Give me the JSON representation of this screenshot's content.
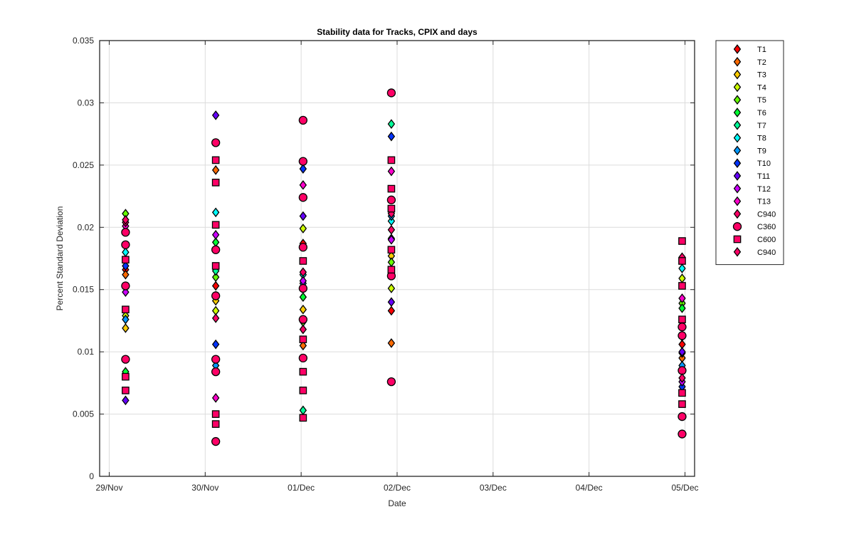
{
  "chart_data": {
    "type": "scatter",
    "title": "Stability data for Tracks, CPIX and days",
    "xlabel": "Date",
    "ylabel": "Percent Standard Deviation",
    "x_ticks": [
      "29/Nov",
      "30/Nov",
      "01/Dec",
      "02/Dec",
      "03/Dec",
      "04/Dec",
      "05/Dec"
    ],
    "y_ticks": [
      "0",
      "0.005",
      "0.01",
      "0.015",
      "0.02",
      "0.025",
      "0.03",
      "0.035"
    ],
    "xlim_days": [
      -0.1,
      6.1
    ],
    "ylim": [
      0,
      0.035
    ],
    "grid": true,
    "legend_position": "outside-right",
    "series": [
      {
        "name": "T1",
        "marker": "diamond",
        "color": "#ff0000",
        "values": [
          {
            "x": "29/Nov",
            "y": 0.0166
          },
          {
            "x": "30/Nov",
            "y": 0.0153
          },
          {
            "x": "01/Dec",
            "y": 0.0187
          },
          {
            "x": "02/Dec",
            "y": 0.0133
          },
          {
            "x": "05/Dec",
            "y": 0.0106
          }
        ]
      },
      {
        "name": "T2",
        "marker": "diamond",
        "color": "#ff6a00",
        "values": [
          {
            "x": "29/Nov",
            "y": 0.0162
          },
          {
            "x": "30/Nov",
            "y": 0.0246
          },
          {
            "x": "01/Dec",
            "y": 0.0105
          },
          {
            "x": "02/Dec",
            "y": 0.0107
          },
          {
            "x": "05/Dec",
            "y": 0.0095
          }
        ]
      },
      {
        "name": "T3",
        "marker": "diamond",
        "color": "#ffcc00",
        "values": [
          {
            "x": "29/Nov",
            "y": 0.0119
          },
          {
            "x": "30/Nov",
            "y": 0.0141
          },
          {
            "x": "01/Dec",
            "y": 0.0134
          },
          {
            "x": "02/Dec",
            "y": 0.0177
          },
          {
            "x": "05/Dec",
            "y": 0.0099
          }
        ]
      },
      {
        "name": "T4",
        "marker": "diamond",
        "color": "#ccff00",
        "values": [
          {
            "x": "29/Nov",
            "y": 0.0129
          },
          {
            "x": "30/Nov",
            "y": 0.0133
          },
          {
            "x": "01/Dec",
            "y": 0.0199
          },
          {
            "x": "02/Dec",
            "y": 0.0151
          },
          {
            "x": "05/Dec",
            "y": 0.0159
          }
        ]
      },
      {
        "name": "T5",
        "marker": "diamond",
        "color": "#66ff00",
        "values": [
          {
            "x": "29/Nov",
            "y": 0.0211
          },
          {
            "x": "30/Nov",
            "y": 0.016
          },
          {
            "x": "01/Dec",
            "y": 0.0124
          },
          {
            "x": "02/Dec",
            "y": 0.0172
          },
          {
            "x": "05/Dec",
            "y": 0.0139
          }
        ]
      },
      {
        "name": "T6",
        "marker": "diamond",
        "color": "#00ff33",
        "values": [
          {
            "x": "29/Nov",
            "y": 0.0084
          },
          {
            "x": "30/Nov",
            "y": 0.0188
          },
          {
            "x": "01/Dec",
            "y": 0.0144
          },
          {
            "x": "02/Dec",
            "y": 0.0191
          },
          {
            "x": "05/Dec",
            "y": 0.0135
          }
        ]
      },
      {
        "name": "T7",
        "marker": "diamond",
        "color": "#00ff99",
        "values": [
          {
            "x": "29/Nov",
            "y": 0.0152
          },
          {
            "x": "30/Nov",
            "y": 0.0165
          },
          {
            "x": "01/Dec",
            "y": 0.0053
          },
          {
            "x": "02/Dec",
            "y": 0.0283
          },
          {
            "x": "05/Dec",
            "y": 0.0112
          }
        ]
      },
      {
        "name": "T8",
        "marker": "diamond",
        "color": "#00ffff",
        "values": [
          {
            "x": "29/Nov",
            "y": 0.018
          },
          {
            "x": "30/Nov",
            "y": 0.0212
          },
          {
            "x": "01/Dec",
            "y": 0.0162
          },
          {
            "x": "02/Dec",
            "y": 0.0205
          },
          {
            "x": "05/Dec",
            "y": 0.0167
          }
        ]
      },
      {
        "name": "T9",
        "marker": "diamond",
        "color": "#0099ff",
        "values": [
          {
            "x": "29/Nov",
            "y": 0.0126
          },
          {
            "x": "30/Nov",
            "y": 0.0089
          },
          {
            "x": "01/Dec",
            "y": 0.0155
          },
          {
            "x": "02/Dec",
            "y": 0.0209
          },
          {
            "x": "05/Dec",
            "y": 0.0089
          }
        ]
      },
      {
        "name": "T10",
        "marker": "diamond",
        "color": "#0033ff",
        "values": [
          {
            "x": "29/Nov",
            "y": 0.0169
          },
          {
            "x": "30/Nov",
            "y": 0.0106
          },
          {
            "x": "01/Dec",
            "y": 0.0247
          },
          {
            "x": "02/Dec",
            "y": 0.0273
          },
          {
            "x": "05/Dec",
            "y": 0.0072
          }
        ]
      },
      {
        "name": "T11",
        "marker": "diamond",
        "color": "#6600ff",
        "values": [
          {
            "x": "29/Nov",
            "y": 0.0061
          },
          {
            "x": "30/Nov",
            "y": 0.029
          },
          {
            "x": "01/Dec",
            "y": 0.0209
          },
          {
            "x": "02/Dec",
            "y": 0.014
          },
          {
            "x": "05/Dec",
            "y": 0.01
          }
        ]
      },
      {
        "name": "T12",
        "marker": "diamond",
        "color": "#cc00ff",
        "values": [
          {
            "x": "29/Nov",
            "y": 0.0148
          },
          {
            "x": "30/Nov",
            "y": 0.0194
          },
          {
            "x": "01/Dec",
            "y": 0.0157
          },
          {
            "x": "02/Dec",
            "y": 0.019
          },
          {
            "x": "05/Dec",
            "y": 0.0076
          }
        ]
      },
      {
        "name": "T13",
        "marker": "diamond",
        "color": "#ff00cc",
        "values": [
          {
            "x": "29/Nov",
            "y": 0.0201
          },
          {
            "x": "30/Nov",
            "y": 0.0063
          },
          {
            "x": "01/Dec",
            "y": 0.0234
          },
          {
            "x": "02/Dec",
            "y": 0.0245
          },
          {
            "x": "05/Dec",
            "y": 0.0143
          }
        ]
      },
      {
        "name": "C940",
        "marker": "diamond",
        "color": "#ff0066",
        "values": [
          {
            "x": "29/Nov",
            "y": 0.0204
          },
          {
            "x": "30/Nov",
            "y": 0.0145
          },
          {
            "x": "01/Dec",
            "y": 0.0118
          },
          {
            "x": "02/Dec",
            "y": 0.0211
          },
          {
            "x": "05/Dec",
            "y": 0.0176
          }
        ]
      },
      {
        "name": "C360",
        "marker": "circle",
        "color": "#ff0066",
        "values": [
          {
            "x": "29/Nov",
            "y": 0.0186
          },
          {
            "x": "29/Nov",
            "y": 0.0196
          },
          {
            "x": "29/Nov",
            "y": 0.0094
          },
          {
            "x": "29/Nov",
            "y": 0.0153
          },
          {
            "x": "30/Nov",
            "y": 0.0028
          },
          {
            "x": "30/Nov",
            "y": 0.0268
          },
          {
            "x": "30/Nov",
            "y": 0.0182
          },
          {
            "x": "30/Nov",
            "y": 0.0094
          },
          {
            "x": "30/Nov",
            "y": 0.0084
          },
          {
            "x": "30/Nov",
            "y": 0.0145
          },
          {
            "x": "01/Dec",
            "y": 0.0286
          },
          {
            "x": "01/Dec",
            "y": 0.0253
          },
          {
            "x": "01/Dec",
            "y": 0.0224
          },
          {
            "x": "01/Dec",
            "y": 0.0184
          },
          {
            "x": "01/Dec",
            "y": 0.0151
          },
          {
            "x": "01/Dec",
            "y": 0.0126
          },
          {
            "x": "01/Dec",
            "y": 0.0095
          },
          {
            "x": "02/Dec",
            "y": 0.0308
          },
          {
            "x": "02/Dec",
            "y": 0.0222
          },
          {
            "x": "02/Dec",
            "y": 0.0161
          },
          {
            "x": "02/Dec",
            "y": 0.0076
          },
          {
            "x": "05/Dec",
            "y": 0.0048
          },
          {
            "x": "05/Dec",
            "y": 0.0034
          },
          {
            "x": "05/Dec",
            "y": 0.012
          },
          {
            "x": "05/Dec",
            "y": 0.0113
          },
          {
            "x": "05/Dec",
            "y": 0.0085
          }
        ]
      },
      {
        "name": "C600",
        "marker": "square",
        "color": "#ff0066",
        "values": [
          {
            "x": "29/Nov",
            "y": 0.0069
          },
          {
            "x": "29/Nov",
            "y": 0.008
          },
          {
            "x": "29/Nov",
            "y": 0.0134
          },
          {
            "x": "29/Nov",
            "y": 0.0174
          },
          {
            "x": "30/Nov",
            "y": 0.0254
          },
          {
            "x": "30/Nov",
            "y": 0.0236
          },
          {
            "x": "30/Nov",
            "y": 0.0202
          },
          {
            "x": "30/Nov",
            "y": 0.0169
          },
          {
            "x": "30/Nov",
            "y": 0.005
          },
          {
            "x": "30/Nov",
            "y": 0.0042
          },
          {
            "x": "01/Dec",
            "y": 0.0047
          },
          {
            "x": "01/Dec",
            "y": 0.0069
          },
          {
            "x": "01/Dec",
            "y": 0.0084
          },
          {
            "x": "01/Dec",
            "y": 0.011
          },
          {
            "x": "01/Dec",
            "y": 0.0173
          },
          {
            "x": "02/Dec",
            "y": 0.0254
          },
          {
            "x": "02/Dec",
            "y": 0.0231
          },
          {
            "x": "02/Dec",
            "y": 0.0215
          },
          {
            "x": "02/Dec",
            "y": 0.0182
          },
          {
            "x": "02/Dec",
            "y": 0.0166
          },
          {
            "x": "05/Dec",
            "y": 0.0189
          },
          {
            "x": "05/Dec",
            "y": 0.0173
          },
          {
            "x": "05/Dec",
            "y": 0.0153
          },
          {
            "x": "05/Dec",
            "y": 0.0126
          },
          {
            "x": "05/Dec",
            "y": 0.0067
          },
          {
            "x": "05/Dec",
            "y": 0.0058
          }
        ]
      },
      {
        "name": "C940",
        "marker": "diamond",
        "color": "#ff0066",
        "values": [
          {
            "x": "29/Nov",
            "y": 0.0206
          },
          {
            "x": "30/Nov",
            "y": 0.0127
          },
          {
            "x": "01/Dec",
            "y": 0.0164
          },
          {
            "x": "02/Dec",
            "y": 0.0198
          },
          {
            "x": "05/Dec",
            "y": 0.0079
          }
        ]
      }
    ]
  }
}
